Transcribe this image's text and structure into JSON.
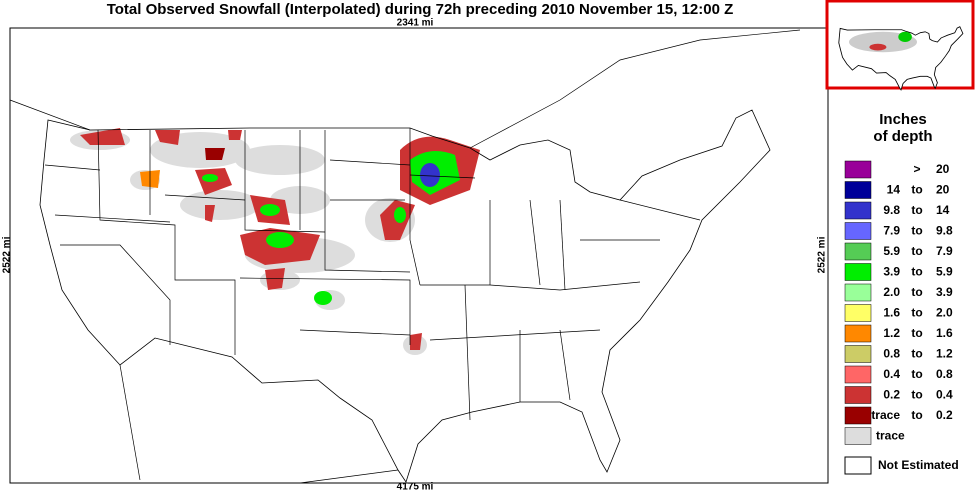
{
  "header": {
    "title": "Total Observed Snowfall (Interpolated) during 72h preceding 2010 November 15, 12:00 Z"
  },
  "scale": {
    "top": "2341 mi",
    "bottom": "4175 mi",
    "left": "2522 mi",
    "right": "2522 mi"
  },
  "legend": {
    "title_line1": "Inches",
    "title_line2": "of depth",
    "rows": [
      {
        "op": ">",
        "high": "20",
        "color": "#990099"
      },
      {
        "low": "14",
        "sep": "to",
        "high": "20",
        "color": "#000099"
      },
      {
        "low": "9.8",
        "sep": "to",
        "high": "14",
        "color": "#3333cc"
      },
      {
        "low": "7.9",
        "sep": "to",
        "high": "9.8",
        "color": "#6666ff"
      },
      {
        "low": "5.9",
        "sep": "to",
        "high": "7.9",
        "color": "#55cc55"
      },
      {
        "low": "3.9",
        "sep": "to",
        "high": "5.9",
        "color": "#00ee00"
      },
      {
        "low": "2.0",
        "sep": "to",
        "high": "3.9",
        "color": "#99ff99"
      },
      {
        "low": "1.6",
        "sep": "to",
        "high": "2.0",
        "color": "#ffff66"
      },
      {
        "low": "1.2",
        "sep": "to",
        "high": "1.6",
        "color": "#ff8800"
      },
      {
        "low": "0.8",
        "sep": "to",
        "high": "1.2",
        "color": "#cccc66"
      },
      {
        "low": "0.4",
        "sep": "to",
        "high": "0.8",
        "color": "#ff6666"
      },
      {
        "low": "0.2",
        "sep": "to",
        "high": "0.4",
        "color": "#cc3333"
      },
      {
        "low": "trace",
        "sep": "to",
        "high": "0.2",
        "color": "#990000"
      },
      {
        "low": "trace",
        "color": "#dddddd"
      }
    ],
    "not_estimated": {
      "label": "Not Estimated",
      "color": "#ffffff"
    }
  }
}
